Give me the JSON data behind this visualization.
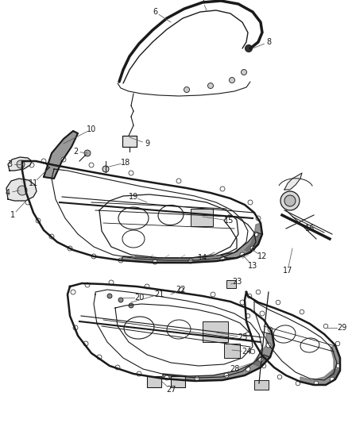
{
  "background_color": "#ffffff",
  "figure_width": 4.38,
  "figure_height": 5.33,
  "dpi": 100,
  "line_color": "#1a1a1a",
  "label_color": "#1a1a1a",
  "label_fontsize": 7.0,
  "leader_color": "#555555"
}
